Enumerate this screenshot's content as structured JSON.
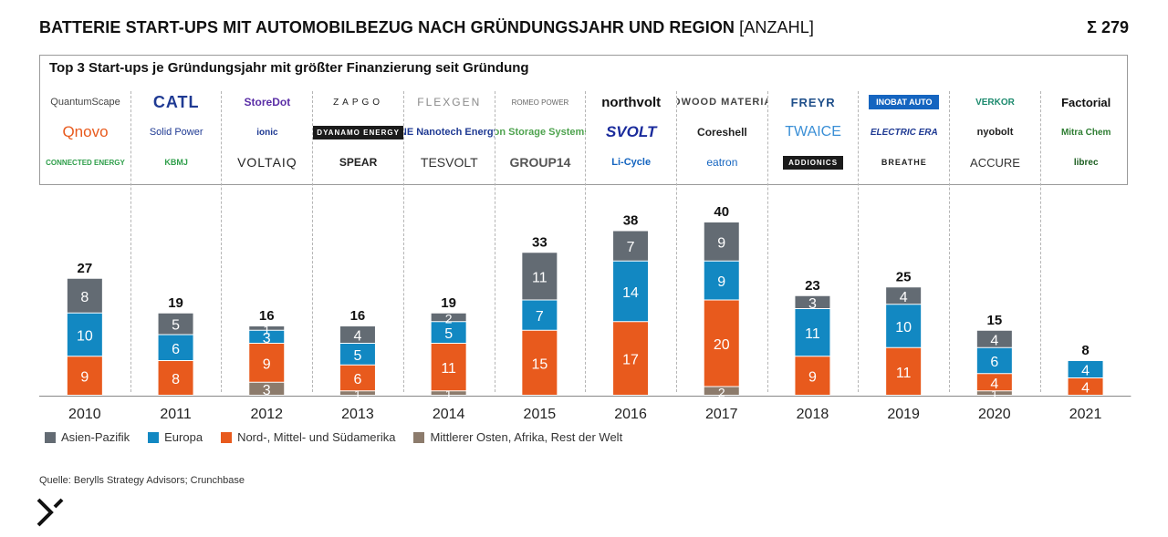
{
  "header": {
    "title": "BATTERIE START-UPS MIT AUTOMOBILBEZUG NACH GRÜNDUNGSJAHR UND REGION",
    "unit": "[ANZAHL]",
    "total": "Σ 279"
  },
  "logos": {
    "title": "Top 3 Start-ups je Gründungsjahr mit größter Finanzierung seit Gründung",
    "columns": [
      {
        "year": "2010",
        "names": [
          "QuantumScape",
          "Qnovo",
          "CONNECTED ENERGY"
        ]
      },
      {
        "year": "2011",
        "names": [
          "CATL",
          "Solid Power",
          "KBMJ"
        ]
      },
      {
        "year": "2012",
        "names": [
          "StoreDot",
          "ionic",
          "VOLTAIQ"
        ]
      },
      {
        "year": "2013",
        "names": [
          "ZAPGO",
          "DYANAMO ENERGY",
          "SPEAR"
        ]
      },
      {
        "year": "2014",
        "names": [
          "FLEXGEN",
          "NE Nanotech Energy",
          "TESVOLT"
        ]
      },
      {
        "year": "2015",
        "names": [
          "ROMEO POWER",
          "ion Storage Systems",
          "GROUP14"
        ]
      },
      {
        "year": "2016",
        "names": [
          "northvolt",
          "SVOLT",
          "Li-Cycle"
        ]
      },
      {
        "year": "2017",
        "names": [
          "REDWOOD MATERIALS",
          "Coreshell",
          "eatron"
        ]
      },
      {
        "year": "2018",
        "names": [
          "FREYR",
          "TWAICE",
          "ADDIONICS"
        ]
      },
      {
        "year": "2019",
        "names": [
          "INOBAT AUTO",
          "ELECTRIC ERA",
          "BREATHE"
        ]
      },
      {
        "year": "2020",
        "names": [
          "VERKOR",
          "nyobolt",
          "ACCURE"
        ]
      },
      {
        "year": "2021",
        "names": [
          "Factorial",
          "Mitra Chem",
          "librec"
        ]
      }
    ]
  },
  "colors": {
    "asia": "#636b73",
    "europe": "#1288c2",
    "americas": "#e85a1d",
    "mea": "#8c7b6c"
  },
  "legend": [
    {
      "key": "asia",
      "label": "Asien-Pazifik"
    },
    {
      "key": "europe",
      "label": "Europa"
    },
    {
      "key": "americas",
      "label": "Nord-, Mittel- und Südamerika"
    },
    {
      "key": "mea",
      "label": "Mittlerer Osten, Afrika, Rest der Welt"
    }
  ],
  "chart_data": {
    "type": "bar",
    "stacked": true,
    "title": "BATTERIE START-UPS MIT AUTOMOBILBEZUG NACH GRÜNDUNGSJAHR UND REGION [ANZAHL]",
    "xlabel": "",
    "ylabel": "Anzahl",
    "ylim": [
      0,
      40
    ],
    "categories": [
      "2010",
      "2011",
      "2012",
      "2013",
      "2014",
      "2015",
      "2016",
      "2017",
      "2018",
      "2019",
      "2020",
      "2021"
    ],
    "totals": [
      27,
      19,
      16,
      16,
      19,
      33,
      38,
      40,
      23,
      25,
      15,
      8
    ],
    "series": [
      {
        "key": "mea",
        "name": "Mittlerer Osten, Afrika, Rest der Welt",
        "values": [
          0,
          0,
          3,
          1,
          1,
          0,
          0,
          2,
          0,
          0,
          1,
          0
        ]
      },
      {
        "key": "americas",
        "name": "Nord-, Mittel- und Südamerika",
        "values": [
          9,
          8,
          9,
          6,
          11,
          15,
          17,
          20,
          9,
          11,
          4,
          4
        ]
      },
      {
        "key": "europe",
        "name": "Europa",
        "values": [
          10,
          6,
          3,
          5,
          5,
          7,
          14,
          9,
          11,
          10,
          6,
          4
        ]
      },
      {
        "key": "asia",
        "name": "Asien-Pazifik",
        "values": [
          8,
          5,
          1,
          4,
          2,
          11,
          7,
          9,
          3,
          4,
          4,
          0
        ]
      }
    ]
  },
  "footer": {
    "source": "Quelle: Berylls Strategy Advisors; Crunchbase"
  }
}
